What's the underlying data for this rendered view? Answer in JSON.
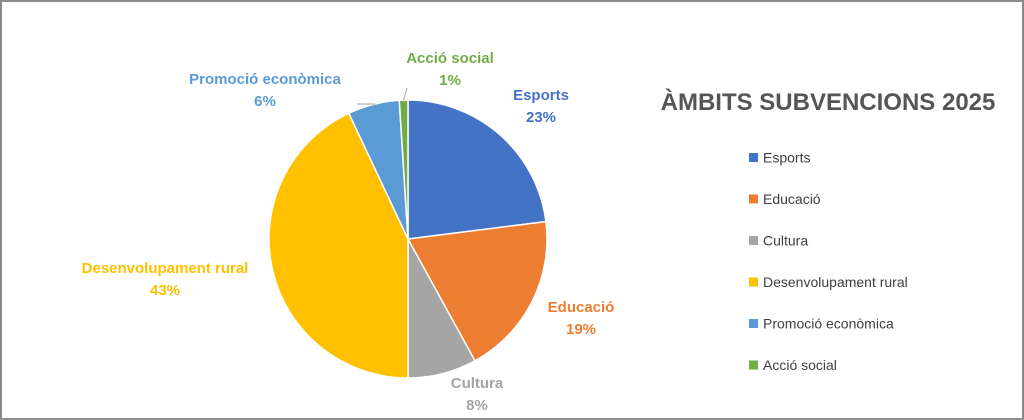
{
  "chart_data": {
    "type": "pie",
    "title": "ÀMBITS SUBVENCIONS 2025",
    "legend_position": "right",
    "slices": [
      {
        "name": "Esports",
        "value": 23,
        "label": "23%",
        "color": "#4472C4"
      },
      {
        "name": "Educació",
        "value": 19,
        "label": "19%",
        "color": "#ED7D31"
      },
      {
        "name": "Cultura",
        "value": 8,
        "label": "8%",
        "color": "#A5A5A5"
      },
      {
        "name": "Desenvolupament rural",
        "value": 43,
        "label": "43%",
        "color": "#FFC000"
      },
      {
        "name": "Promoció econòmica",
        "value": 6,
        "label": "6%",
        "color": "#5B9BD5"
      },
      {
        "name": "Acció social",
        "value": 1,
        "label": "1%",
        "color": "#70AD47"
      }
    ]
  }
}
